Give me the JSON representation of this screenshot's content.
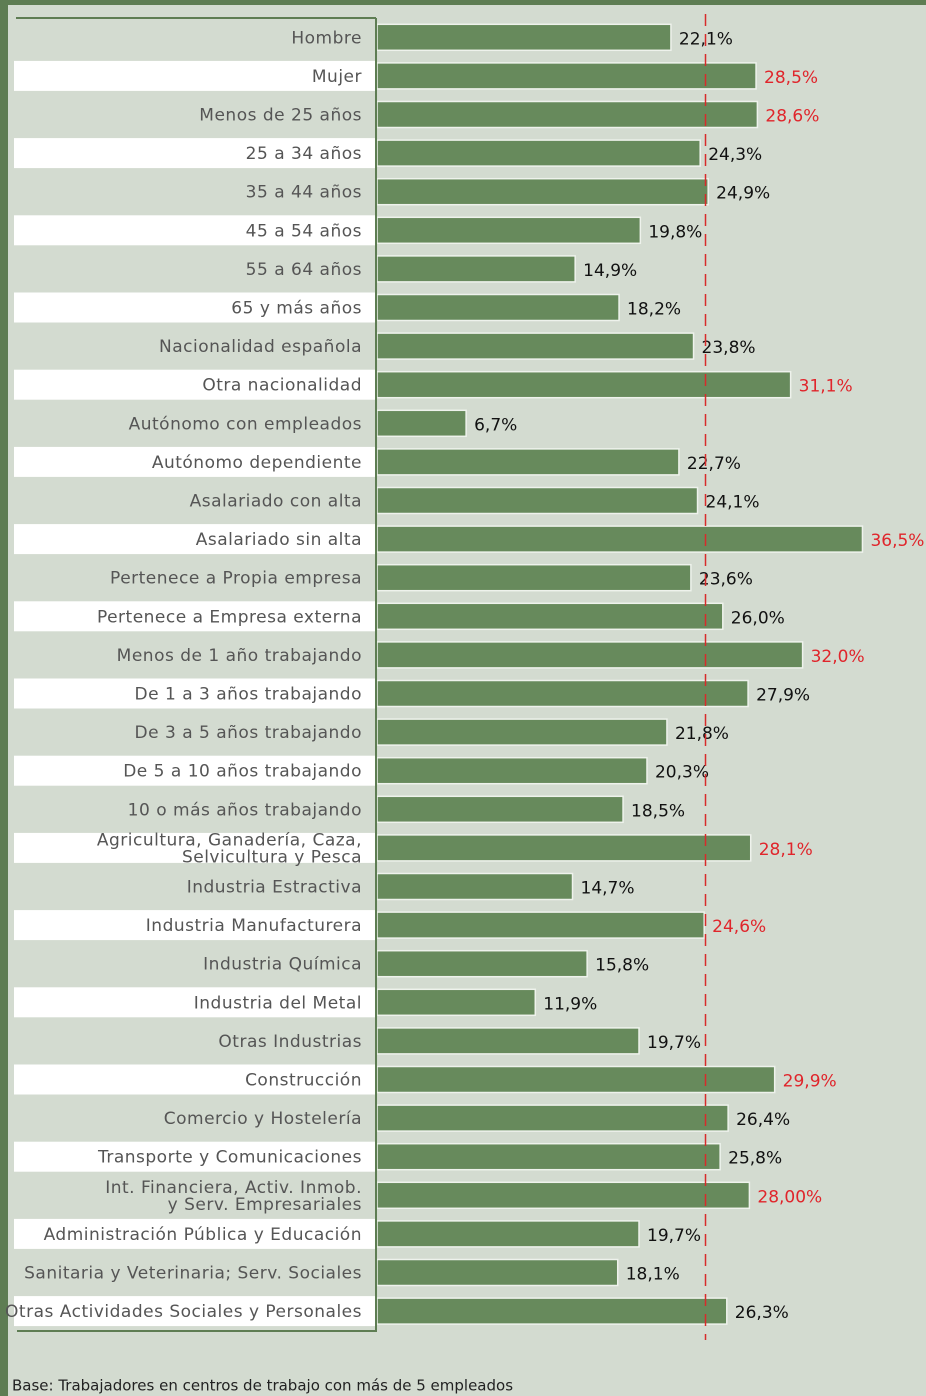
{
  "chart_data": {
    "type": "barh",
    "categories": [
      "Hombre",
      "Mujer",
      "Menos de 25 años",
      "25 a 34 años",
      "35 a 44 años",
      "45 a 54 años",
      "55 a 64 años",
      "65 y más años",
      "Nacionalidad española",
      "Otra nacionalidad",
      "Autónomo con empleados",
      "Autónomo dependiente",
      "Asalariado con alta",
      "Asalariado sin alta",
      "Pertenece a Propia empresa",
      "Pertenece a Empresa externa",
      "Menos de 1 año trabajando",
      "De 1 a 3 años trabajando",
      "De 3 a 5 años trabajando",
      "De 5 a 10 años trabajando",
      "10 o más años trabajando",
      "Agricultura, Ganadería, Caza,\nSelvicultura y Pesca",
      "Industria Estractiva",
      "Industria Manufacturera",
      "Industria Química",
      "Industria del Metal",
      "Otras Industrias",
      "Construcción",
      "Comercio y Hostelería",
      "Transporte y Comunicaciones",
      "Int. Financiera, Activ. Inmob.\ny Serv. Empresariales",
      "Administración Pública y Educación",
      "Sanitaria y Veterinaria; Serv. Sociales",
      "Otras Actividades Sociales y Personales"
    ],
    "values": [
      22.1,
      28.5,
      28.6,
      24.3,
      24.9,
      19.8,
      14.9,
      18.2,
      23.8,
      31.1,
      6.7,
      22.7,
      24.1,
      36.5,
      23.6,
      26.0,
      32.0,
      27.9,
      21.8,
      20.3,
      18.5,
      28.1,
      14.7,
      24.6,
      15.8,
      11.9,
      19.7,
      29.9,
      26.4,
      25.8,
      28.0,
      19.7,
      18.1,
      26.3
    ],
    "value_labels": [
      "22,1%",
      "28,5%",
      "28,6%",
      "24,3%",
      "24,9%",
      "19,8%",
      "14,9%",
      "18,2%",
      "23,8%",
      "31,1%",
      "6,7%",
      "22,7%",
      "24,1%",
      "36,5%",
      "23,6%",
      "26,0%",
      "32,0%",
      "27,9%",
      "21,8%",
      "20,3%",
      "18,5%",
      "28,1%",
      "14,7%",
      "24,6%",
      "15,8%",
      "11,9%",
      "19,7%",
      "29,9%",
      "26,4%",
      "25,8%",
      "28,00%",
      "19,7%",
      "18,1%",
      "26,3%"
    ],
    "value_label_colors": [
      "#111",
      "#e0252b",
      "#e0252b",
      "#111",
      "#111",
      "#111",
      "#111",
      "#111",
      "#111",
      "#e0252b",
      "#111",
      "#111",
      "#111",
      "#e0252b",
      "#111",
      "#111",
      "#e0252b",
      "#111",
      "#111",
      "#111",
      "#111",
      "#e0252b",
      "#111",
      "#e0252b",
      "#111",
      "#111",
      "#111",
      "#e0252b",
      "#111",
      "#111",
      "#e0252b",
      "#111",
      "#111",
      "#111"
    ],
    "color": "#678a5c",
    "xlim": [
      0,
      40
    ],
    "reference_line": {
      "value": 24.7,
      "color": "#d62b2b"
    },
    "footnote": "Base: Trabajadores en centros de trabajo con más de 5 empleados"
  }
}
